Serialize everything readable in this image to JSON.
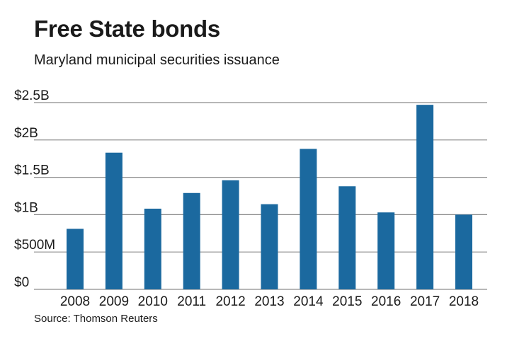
{
  "title": "Free State bonds",
  "subtitle": "Maryland municipal securities issuance",
  "source": "Source: Thomson Reuters",
  "chart_data": {
    "type": "bar",
    "title": "Free State bonds",
    "subtitle": "Maryland municipal securities issuance",
    "xlabel": "",
    "ylabel": "",
    "categories": [
      "2008",
      "2009",
      "2010",
      "2011",
      "2012",
      "2013",
      "2014",
      "2015",
      "2016",
      "2017",
      "2018"
    ],
    "values": [
      0.81,
      1.83,
      1.08,
      1.29,
      1.46,
      1.14,
      1.88,
      1.38,
      1.03,
      2.47,
      1.0
    ],
    "unit": "billions of dollars",
    "ylim": [
      0,
      2.5
    ],
    "yticks": [
      0,
      0.5,
      1,
      1.5,
      2,
      2.5
    ],
    "ytick_labels": [
      "$0",
      "$500M",
      "$1B",
      "$1.5B",
      "$2B",
      "$2.5B"
    ],
    "grid": true,
    "bar_color": "#1b699f",
    "grid_color": "#8c8c8c"
  }
}
